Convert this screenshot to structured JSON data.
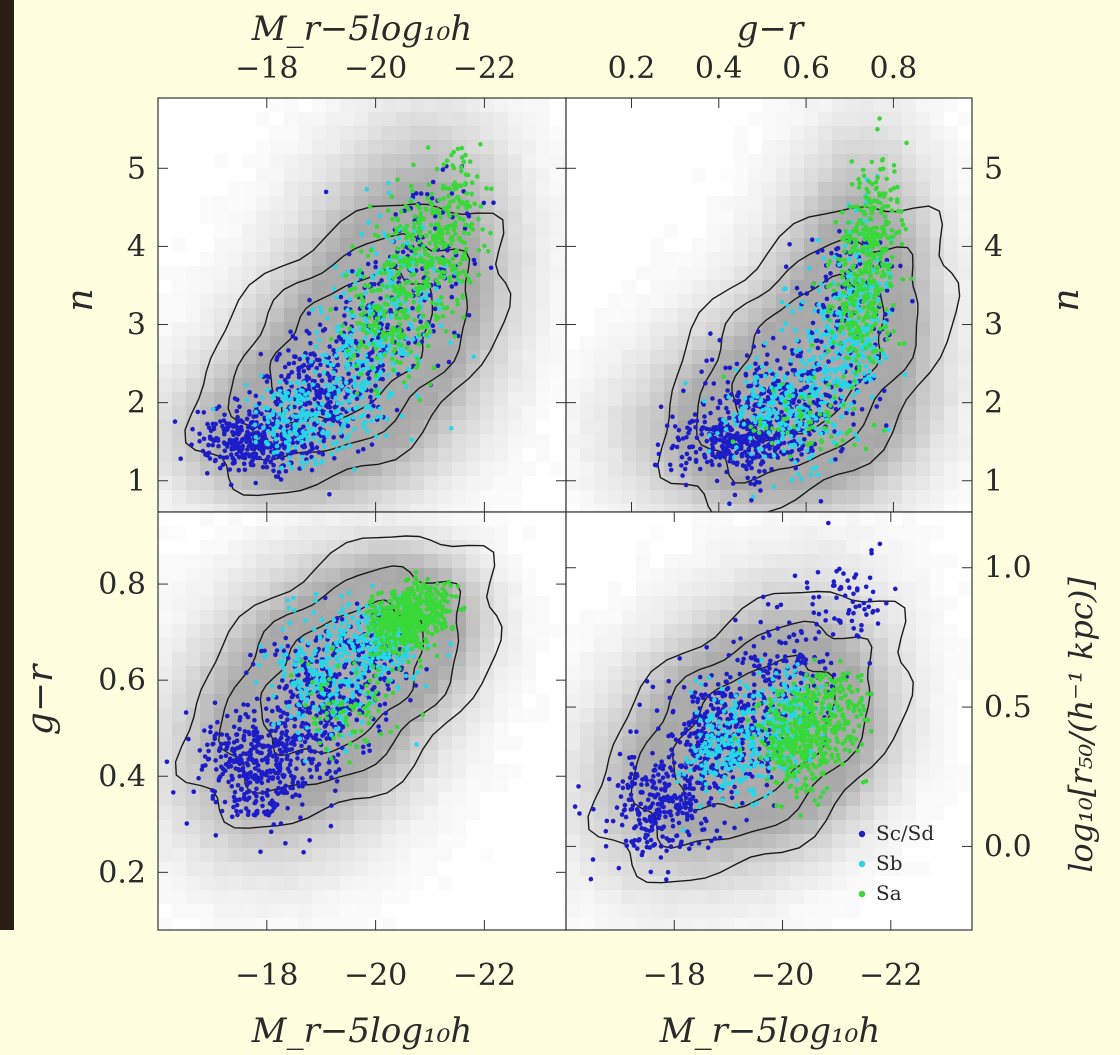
{
  "colors": {
    "page_bg": "#ffffe0",
    "panel_bg": "#ffffff",
    "left_strip": "#2b1d12",
    "contour": "#1a1a1a",
    "axis": "#333333",
    "Sc_Sd": "#1c1cc8",
    "Sb": "#27d6e8",
    "Sa": "#38d838"
  },
  "axis_titles": {
    "top_left": "M_r−5log₁₀h",
    "top_right": "g−r",
    "left_top": "n",
    "left_bottom": "g−r",
    "right_top": "n",
    "right_bottom": "log₁₀[r₅₀/(h⁻¹ kpc)]",
    "bottom_left": "M_r−5log₁₀h",
    "bottom_right": "M_r−5log₁₀h"
  },
  "chart_data": [
    {
      "type": "scatter",
      "panel": "top-left",
      "x_axis": "M_r−5log₁₀h (top axis)",
      "y_axis": "n",
      "xlim": [
        -16.0,
        -23.5
      ],
      "ylim": [
        0.6,
        5.9
      ],
      "xticks": [
        "−18",
        "−20",
        "−22"
      ],
      "xtick_values": [
        -18,
        -20,
        -22
      ],
      "yticks": [
        "1",
        "2",
        "3",
        "4",
        "5"
      ],
      "ytick_values": [
        1,
        2,
        3,
        4,
        5
      ],
      "series": [
        {
          "name": "Sc/Sd",
          "color": "#1c1cc8",
          "centers": [
            [
              -17.8,
              1.5,
              0.9,
              0.35,
              350
            ],
            [
              -18.9,
              2.1,
              0.9,
              0.6,
              250
            ],
            [
              -20.0,
              3.0,
              1.0,
              0.9,
              160
            ],
            [
              -21.0,
              4.0,
              0.9,
              0.9,
              80
            ]
          ]
        },
        {
          "name": "Sb",
          "color": "#27d6e8",
          "centers": [
            [
              -18.6,
              1.8,
              0.9,
              0.5,
              200
            ],
            [
              -19.8,
              2.6,
              0.9,
              0.8,
              200
            ],
            [
              -20.5,
              3.5,
              0.8,
              0.9,
              120
            ]
          ]
        },
        {
          "name": "Sa",
          "color": "#38d838",
          "centers": [
            [
              -20.3,
              3.2,
              0.8,
              0.8,
              200
            ],
            [
              -21.0,
              4.0,
              0.7,
              0.8,
              220
            ],
            [
              -21.5,
              4.6,
              0.6,
              0.7,
              80
            ]
          ]
        }
      ]
    },
    {
      "type": "scatter",
      "panel": "top-right",
      "x_axis": "g−r (top axis)",
      "y_axis": "n",
      "xlim": [
        0.05,
        0.98
      ],
      "ylim": [
        0.6,
        5.9
      ],
      "xticks": [
        "0.2",
        "0.4",
        "0.6",
        "0.8"
      ],
      "xtick_values": [
        0.2,
        0.4,
        0.6,
        0.8
      ],
      "yticks": [
        "1",
        "2",
        "3",
        "4",
        "5"
      ],
      "ytick_values": [
        1,
        2,
        3,
        4,
        5
      ],
      "series": [
        {
          "name": "Sc/Sd",
          "color": "#1c1cc8",
          "centers": [
            [
              0.45,
              1.5,
              0.14,
              0.45,
              380
            ],
            [
              0.55,
              2.1,
              0.15,
              0.6,
              230
            ],
            [
              0.68,
              3.3,
              0.1,
              0.9,
              120
            ]
          ]
        },
        {
          "name": "Sb",
          "color": "#27d6e8",
          "centers": [
            [
              0.55,
              1.9,
              0.12,
              0.6,
              220
            ],
            [
              0.68,
              2.7,
              0.1,
              0.8,
              200
            ],
            [
              0.73,
              3.6,
              0.07,
              0.9,
              100
            ]
          ]
        },
        {
          "name": "Sa",
          "color": "#38d838",
          "centers": [
            [
              0.72,
              3.3,
              0.07,
              0.8,
              200
            ],
            [
              0.75,
              4.2,
              0.06,
              0.8,
              200
            ],
            [
              0.6,
              1.8,
              0.12,
              0.5,
              60
            ]
          ]
        }
      ]
    },
    {
      "type": "scatter",
      "panel": "bottom-left",
      "x_axis": "M_r−5log₁₀h",
      "y_axis": "g−r",
      "xlim": [
        -16.0,
        -23.5
      ],
      "ylim": [
        0.08,
        0.95
      ],
      "xticks": [
        "−18",
        "−20",
        "−22"
      ],
      "xtick_values": [
        -18,
        -20,
        -22
      ],
      "yticks": [
        "0.2",
        "0.4",
        "0.6",
        "0.8"
      ],
      "ytick_values": [
        0.2,
        0.4,
        0.6,
        0.8
      ],
      "series": [
        {
          "name": "Sc/Sd",
          "color": "#1c1cc8",
          "centers": [
            [
              -17.8,
              0.42,
              0.9,
              0.11,
              380
            ],
            [
              -18.9,
              0.55,
              0.9,
              0.12,
              300
            ],
            [
              -19.9,
              0.65,
              0.8,
              0.1,
              140
            ]
          ]
        },
        {
          "name": "Sb",
          "color": "#27d6e8",
          "centers": [
            [
              -19.0,
              0.6,
              0.9,
              0.11,
              220
            ],
            [
              -20.0,
              0.68,
              0.8,
              0.08,
              200
            ]
          ]
        },
        {
          "name": "Sa",
          "color": "#38d838",
          "centers": [
            [
              -20.5,
              0.72,
              0.6,
              0.06,
              350
            ],
            [
              -21.0,
              0.76,
              0.5,
              0.05,
              150
            ],
            [
              -19.5,
              0.55,
              0.9,
              0.1,
              80
            ]
          ]
        }
      ]
    },
    {
      "type": "scatter",
      "panel": "bottom-right",
      "x_axis": "M_r−5log₁₀h",
      "y_axis": "log₁₀[r₅₀/(h⁻¹ kpc)]",
      "xlim": [
        -16.0,
        -23.5
      ],
      "ylim": [
        -0.3,
        1.2
      ],
      "xticks": [
        "−18",
        "−20",
        "−22"
      ],
      "xtick_values": [
        -18,
        -20,
        -22
      ],
      "yticks": [
        "0.0",
        "0.5",
        "1.0"
      ],
      "ytick_values": [
        0.0,
        0.5,
        1.0
      ],
      "series": [
        {
          "name": "Sc/Sd",
          "color": "#1c1cc8",
          "centers": [
            [
              -17.8,
              0.15,
              0.9,
              0.17,
              300
            ],
            [
              -18.9,
              0.4,
              0.9,
              0.18,
              330
            ],
            [
              -20.0,
              0.65,
              0.9,
              0.2,
              150
            ],
            [
              -21.2,
              0.9,
              0.7,
              0.15,
              60
            ]
          ]
        },
        {
          "name": "Sb",
          "color": "#27d6e8",
          "centers": [
            [
              -19.0,
              0.35,
              0.8,
              0.17,
              200
            ],
            [
              -20.0,
              0.45,
              0.8,
              0.17,
              200
            ]
          ]
        },
        {
          "name": "Sa",
          "color": "#38d838",
          "centers": [
            [
              -20.3,
              0.38,
              0.7,
              0.17,
              330
            ],
            [
              -21.0,
              0.5,
              0.6,
              0.15,
              150
            ]
          ]
        }
      ],
      "legend": {
        "placement": "bottom-right",
        "entries": [
          {
            "label": "Sc/Sd",
            "color": "#1c1cc8"
          },
          {
            "label": "Sb",
            "color": "#27d6e8"
          },
          {
            "label": "Sa",
            "color": "#38d838"
          }
        ]
      }
    }
  ]
}
